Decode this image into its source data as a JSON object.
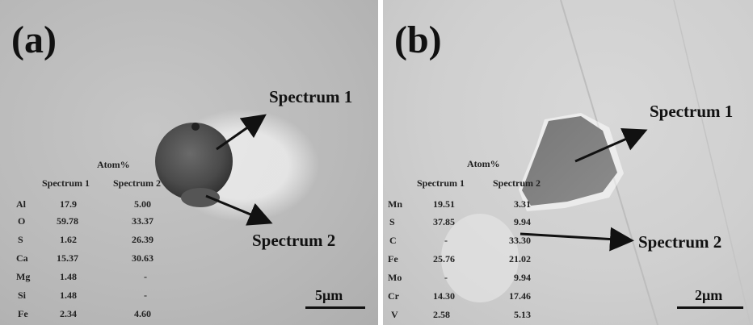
{
  "panels": [
    {
      "label": "(a)",
      "spectrum_1": "Spectrum 1",
      "spectrum_2": "Spectrum 2",
      "table_title": "Atom%",
      "col_1": "Spectrum 1",
      "col_2": "Spectrum 2",
      "rows": [
        {
          "element": "Al",
          "s1": "17.9",
          "s2": "5.00"
        },
        {
          "element": "O",
          "s1": "59.78",
          "s2": "33.37"
        },
        {
          "element": "S",
          "s1": "1.62",
          "s2": "26.39"
        },
        {
          "element": "Ca",
          "s1": "15.37",
          "s2": "30.63"
        },
        {
          "element": "Mg",
          "s1": "1.48",
          "s2": "-"
        },
        {
          "element": "Si",
          "s1": "1.48",
          "s2": "-"
        },
        {
          "element": "Fe",
          "s1": "2.34",
          "s2": "4.60"
        }
      ],
      "scale": "5μm"
    },
    {
      "label": "(b)",
      "spectrum_1": "Spectrum 1",
      "spectrum_2": "Spectrum 2",
      "table_title": "Atom%",
      "col_1": "Spectrum 1",
      "col_2": "Spectrum 2",
      "rows": [
        {
          "element": "Mn",
          "s1": "19.51",
          "s2": "3.31"
        },
        {
          "element": "S",
          "s1": "37.85",
          "s2": "9.94"
        },
        {
          "element": "C",
          "s1": "-",
          "s2": "33.30"
        },
        {
          "element": "Fe",
          "s1": "25.76",
          "s2": "21.02"
        },
        {
          "element": "Mo",
          "s1": "-",
          "s2": "9.94"
        },
        {
          "element": "Cr",
          "s1": "14.30",
          "s2": "17.46"
        },
        {
          "element": "V",
          "s1": "2.58",
          "s2": "5.13"
        }
      ],
      "scale": "2μm"
    }
  ]
}
